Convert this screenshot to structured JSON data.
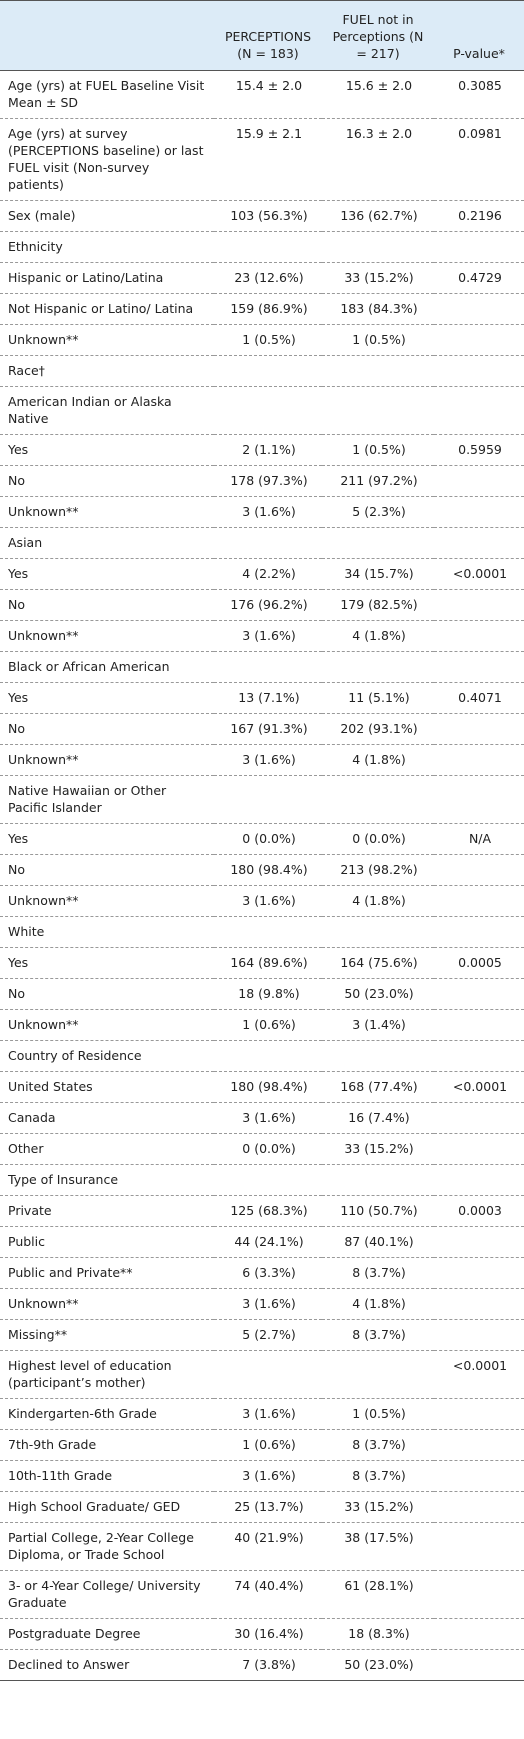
{
  "table": {
    "header": [
      "",
      "PERCEPTIONS (N = 183)",
      "FUEL not in Perceptions (N = 217)",
      "P-value*"
    ],
    "rows": [
      [
        "Age (yrs) at FUEL Baseline Visit Mean ± SD",
        "15.4 ± 2.0",
        "15.6 ± 2.0",
        "0.3085"
      ],
      [
        "Age (yrs) at survey (PERCEPTIONS baseline) or last FUEL visit (Non-survey patients)",
        "15.9 ± 2.1",
        "16.3 ± 2.0",
        "0.0981"
      ],
      [
        "Sex (male)",
        "103 (56.3%)",
        "136 (62.7%)",
        "0.2196"
      ],
      [
        "Ethnicity",
        null,
        null,
        null
      ],
      [
        "Hispanic or Latino/Latina",
        "23 (12.6%)",
        "33 (15.2%)",
        "0.4729"
      ],
      [
        "Not Hispanic or Latino/ Latina",
        "159 (86.9%)",
        "183 (84.3%)",
        null
      ],
      [
        "Unknown**",
        "1 (0.5%)",
        "1 (0.5%)",
        null
      ],
      [
        "Race†",
        null,
        null,
        null
      ],
      [
        "American Indian or Alaska Native",
        null,
        null,
        null
      ],
      [
        "Yes",
        "2 (1.1%)",
        "1 (0.5%)",
        "0.5959"
      ],
      [
        "No",
        "178 (97.3%)",
        "211 (97.2%)",
        null
      ],
      [
        "Unknown**",
        "3 (1.6%)",
        "5 (2.3%)",
        null
      ],
      [
        "Asian",
        null,
        null,
        null
      ],
      [
        "Yes",
        "4 (2.2%)",
        "34 (15.7%)",
        "<0.0001"
      ],
      [
        "No",
        "176 (96.2%)",
        "179 (82.5%)",
        null
      ],
      [
        "Unknown**",
        "3 (1.6%)",
        "4 (1.8%)",
        null
      ],
      [
        "Black or African American",
        null,
        null,
        null
      ],
      [
        "Yes",
        "13 (7.1%)",
        "11 (5.1%)",
        "0.4071"
      ],
      [
        "No",
        "167 (91.3%)",
        "202 (93.1%)",
        null
      ],
      [
        "Unknown**",
        "3 (1.6%)",
        "4 (1.8%)",
        null
      ],
      [
        "Native Hawaiian or Other Pacific Islander",
        null,
        null,
        null
      ],
      [
        "Yes",
        "0 (0.0%)",
        "0 (0.0%)",
        "N/A"
      ],
      [
        "No",
        "180 (98.4%)",
        "213 (98.2%)",
        null
      ],
      [
        "Unknown**",
        "3 (1.6%)",
        "4 (1.8%)",
        null
      ],
      [
        "White",
        null,
        null,
        null
      ],
      [
        "Yes",
        "164 (89.6%)",
        "164 (75.6%)",
        "0.0005"
      ],
      [
        "No",
        "18 (9.8%)",
        "50 (23.0%)",
        null
      ],
      [
        "Unknown**",
        "1 (0.6%)",
        "3 (1.4%)",
        null
      ],
      [
        "Country of Residence",
        null,
        null,
        null
      ],
      [
        "United States",
        "180 (98.4%)",
        "168 (77.4%)",
        "<0.0001"
      ],
      [
        "Canada",
        "3 (1.6%)",
        "16 (7.4%)",
        null
      ],
      [
        "Other",
        "0 (0.0%)",
        "33 (15.2%)",
        null
      ],
      [
        "Type of Insurance",
        null,
        null,
        null
      ],
      [
        "Private",
        "125 (68.3%)",
        "110 (50.7%)",
        "0.0003"
      ],
      [
        "Public",
        "44 (24.1%)",
        "87 (40.1%)",
        null
      ],
      [
        "Public and Private**",
        "6 (3.3%)",
        "8 (3.7%)",
        null
      ],
      [
        "Unknown**",
        "3 (1.6%)",
        "4 (1.8%)",
        null
      ],
      [
        "Missing**",
        "5 (2.7%)",
        "8 (3.7%)",
        null
      ],
      [
        "Highest level of education (participant’s mother)",
        null,
        null,
        "<0.0001"
      ],
      [
        "Kindergarten-6th Grade",
        "3 (1.6%)",
        "1 (0.5%)",
        null
      ],
      [
        "7th-9th Grade",
        "1 (0.6%)",
        "8 (3.7%)",
        null
      ],
      [
        "10th-11th Grade",
        "3 (1.6%)",
        "8 (3.7%)",
        null
      ],
      [
        "High School Graduate/ GED",
        "25 (13.7%)",
        "33 (15.2%)",
        null
      ],
      [
        "Partial College, 2-Year College Diploma, or Trade School",
        "40 (21.9%)",
        "38 (17.5%)",
        null
      ],
      [
        "3- or 4-Year College/ University Graduate",
        "74 (40.4%)",
        "61 (28.1%)",
        null
      ],
      [
        "Postgraduate Degree",
        "30 (16.4%)",
        "18 (8.3%)",
        null
      ],
      [
        "Declined to Answer",
        "7 (3.8%)",
        "50 (23.0%)",
        null
      ]
    ]
  }
}
